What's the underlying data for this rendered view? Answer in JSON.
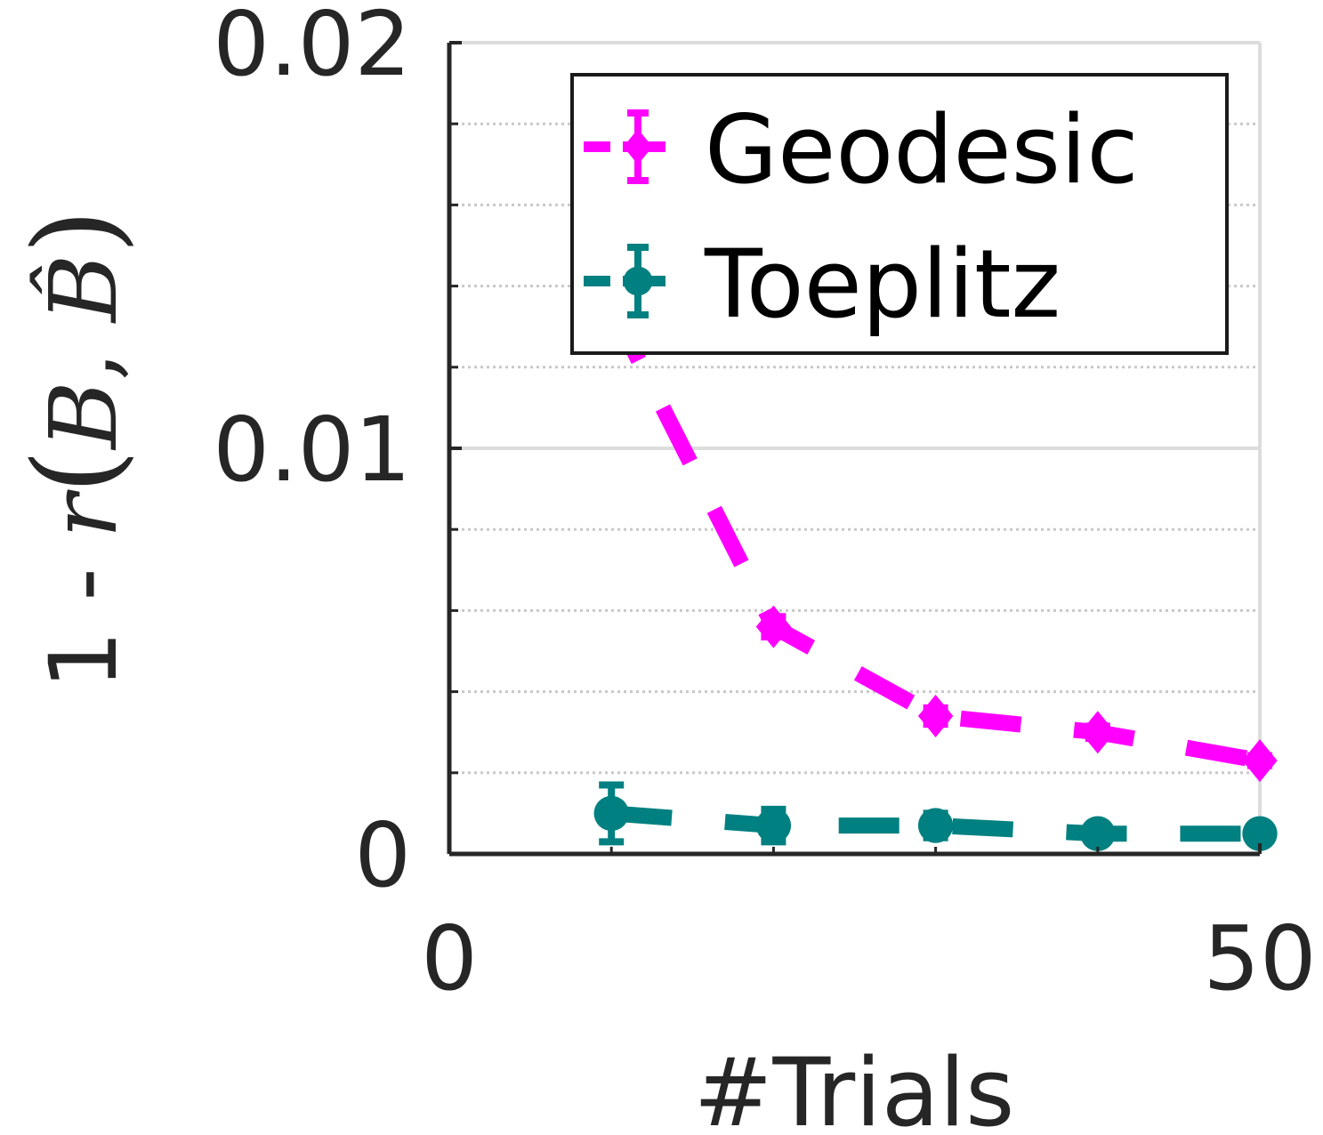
{
  "chart_data": {
    "type": "line",
    "xlabel": "#Trials",
    "ylabel": "1 - r(B, B̂)",
    "ylabel_parts": {
      "prefix": "1 - ",
      "func": "r",
      "open": "(",
      "arg1": "B",
      "comma": ", ",
      "arg2": "B̂",
      "close": ")"
    },
    "xlim": [
      0,
      50
    ],
    "ylim": [
      0,
      0.02
    ],
    "x_ticks": [
      {
        "value": 0,
        "label": "0"
      },
      {
        "value": 50,
        "label": "50"
      }
    ],
    "y_ticks": [
      {
        "value": 0,
        "label": "0"
      },
      {
        "value": 0.01,
        "label": "0.01"
      },
      {
        "value": 0.02,
        "label": "0.02"
      }
    ],
    "y_minor_step": 0.002,
    "grid": true,
    "legend_position": "top-right",
    "series": [
      {
        "name": "Geodesic",
        "color": "#ff00ff",
        "marker": "diamond",
        "x": [
          10,
          20,
          30,
          40,
          50
        ],
        "y": [
          0.0135,
          0.0056,
          0.0034,
          0.003,
          0.0023
        ],
        "err": [
          0.0009,
          0.00025,
          0.0002,
          0.00015,
          0.00012
        ]
      },
      {
        "name": "Toeplitz",
        "color": "#008080",
        "marker": "circle",
        "x": [
          10,
          20,
          30,
          40,
          50
        ],
        "y": [
          0.001,
          0.0007,
          0.0007,
          0.0005,
          0.0005
        ],
        "err": [
          0.0007,
          0.0004,
          0.0003,
          0.0002,
          0.0002
        ]
      }
    ]
  }
}
